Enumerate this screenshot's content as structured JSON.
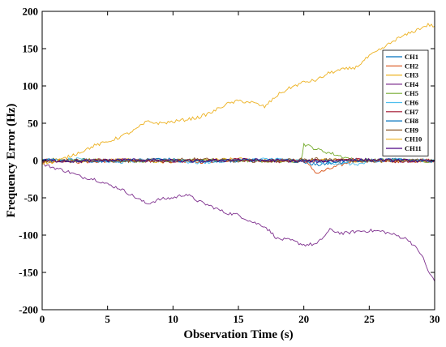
{
  "chart_data": {
    "type": "line",
    "xlabel": "Observation Time (s)",
    "ylabel": "Frequency Error (Hz)",
    "xlim": [
      0,
      30
    ],
    "ylim": [
      -200,
      200
    ],
    "xticks": [
      0,
      5,
      10,
      15,
      20,
      25,
      30
    ],
    "yticks": [
      -200,
      -150,
      -100,
      -50,
      0,
      50,
      100,
      150,
      200
    ],
    "grid": false,
    "legend_position": "right",
    "series": [
      {
        "name": "CH1",
        "color": "#0072BD",
        "x": [
          0,
          3,
          6,
          9,
          12,
          15,
          18,
          20,
          21,
          24,
          27,
          30
        ],
        "y": [
          0,
          1,
          -1,
          2,
          -1,
          0,
          1,
          -2,
          -6,
          0,
          1,
          -1
        ]
      },
      {
        "name": "CH2",
        "color": "#D95319",
        "x": [
          0,
          3,
          6,
          9,
          12,
          15,
          18,
          20,
          21,
          24,
          27,
          30
        ],
        "y": [
          1,
          -2,
          0,
          1,
          -2,
          1,
          0,
          0,
          -17,
          1,
          -1,
          0
        ]
      },
      {
        "name": "CH3",
        "color": "#EDB120",
        "x": [
          0,
          3,
          6,
          9,
          12,
          15,
          18,
          21,
          24,
          27,
          30
        ],
        "y": [
          2,
          -1,
          1,
          -2,
          0,
          2,
          -1,
          1,
          0,
          -1,
          1
        ]
      },
      {
        "name": "CH4",
        "color": "#7E2F8E",
        "x": [
          0,
          1,
          2,
          3,
          4,
          5,
          6,
          7,
          8,
          9,
          10,
          11,
          12,
          13,
          14,
          15,
          16,
          17,
          18,
          19,
          20,
          21,
          22,
          23,
          24,
          25,
          26,
          27,
          28,
          29,
          29.5,
          30
        ],
        "y": [
          -5,
          -10,
          -15,
          -22,
          -25,
          -32,
          -38,
          -48,
          -58,
          -52,
          -50,
          -45,
          -55,
          -62,
          -70,
          -73,
          -82,
          -88,
          -105,
          -107,
          -113,
          -112,
          -93,
          -98,
          -95,
          -94,
          -95,
          -100,
          -106,
          -126,
          -148,
          -162
        ]
      },
      {
        "name": "CH5",
        "color": "#77AC30",
        "x": [
          0,
          3,
          6,
          9,
          12,
          15,
          18,
          19.8,
          20,
          21,
          24,
          27,
          30
        ],
        "y": [
          -1,
          1,
          0,
          -1,
          1,
          0,
          -1,
          0,
          22,
          15,
          0,
          1,
          -1
        ]
      },
      {
        "name": "CH6",
        "color": "#4DBEEE",
        "x": [
          0,
          3,
          6,
          9,
          12,
          15,
          18,
          21,
          24,
          27,
          30
        ],
        "y": [
          0,
          2,
          -2,
          1,
          -3,
          1,
          2,
          -2,
          -5,
          1,
          0
        ]
      },
      {
        "name": "CH7",
        "color": "#A2142F",
        "x": [
          0,
          3,
          6,
          9,
          12,
          15,
          18,
          21,
          24,
          27,
          30
        ],
        "y": [
          -1,
          0,
          1,
          -1,
          0,
          1,
          -1,
          0,
          1,
          -1,
          0
        ]
      },
      {
        "name": "CH8",
        "color": "#0072BD",
        "x": [
          0,
          3,
          6,
          9,
          12,
          15,
          18,
          21,
          24,
          27,
          30
        ],
        "y": [
          1,
          -1,
          0,
          1,
          -1,
          0,
          1,
          -1,
          0,
          1,
          -1
        ]
      },
      {
        "name": "CH9",
        "color": "#8C5A2B",
        "x": [
          0,
          3,
          6,
          9,
          12,
          15,
          18,
          21,
          24,
          27,
          30
        ],
        "y": [
          -2,
          1,
          -1,
          0,
          2,
          -1,
          0,
          2,
          -1,
          0,
          1
        ]
      },
      {
        "name": "CH10",
        "color": "#EDB120",
        "x": [
          0,
          1,
          2,
          3,
          4,
          5,
          6,
          7,
          8,
          9,
          10,
          11,
          12,
          13,
          14,
          15,
          16,
          17,
          18,
          19,
          20,
          21,
          22,
          23,
          24,
          25,
          26,
          27,
          28,
          29,
          29.5,
          30
        ],
        "y": [
          -3,
          -2,
          5,
          12,
          20,
          25,
          32,
          40,
          52,
          50,
          52,
          55,
          58,
          65,
          75,
          80,
          78,
          72,
          88,
          98,
          105,
          108,
          118,
          122,
          125,
          140,
          150,
          162,
          170,
          178,
          182,
          180
        ]
      },
      {
        "name": "CH11",
        "color": "#4B0082",
        "x": [
          0,
          3,
          6,
          9,
          12,
          15,
          18,
          21,
          24,
          27,
          30
        ],
        "y": [
          0,
          -1,
          1,
          0,
          -1,
          1,
          0,
          -1,
          1,
          0,
          -1
        ]
      }
    ]
  }
}
